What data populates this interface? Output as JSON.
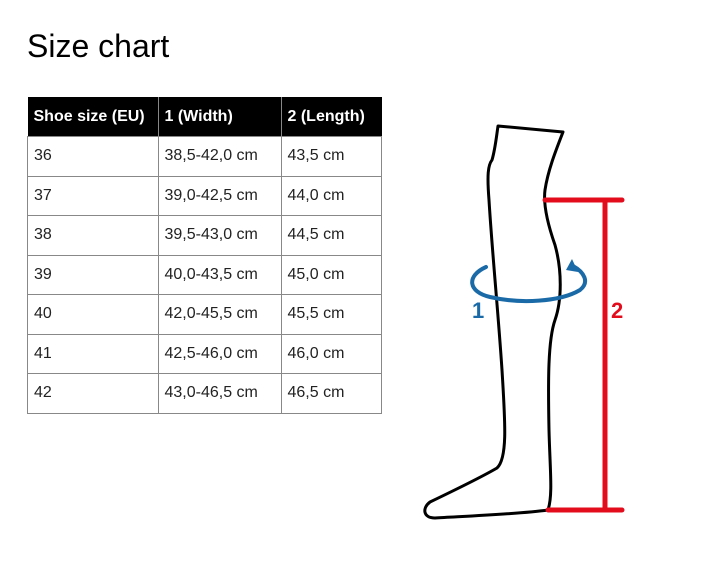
{
  "title": "Size chart",
  "table": {
    "headers": [
      "Shoe size (EU)",
      "1 (Width)",
      "2 (Length)"
    ],
    "rows": [
      [
        "36",
        "38,5-42,0 cm",
        "43,5 cm"
      ],
      [
        "37",
        "39,0-42,5 cm",
        "44,0 cm"
      ],
      [
        "38",
        "39,5-43,0 cm",
        "44,5 cm"
      ],
      [
        "39",
        "40,0-43,5 cm",
        "45,0 cm"
      ],
      [
        "40",
        "42,0-45,5 cm",
        "45,5 cm"
      ],
      [
        "41",
        "42,5-46,0 cm",
        "46,0 cm"
      ],
      [
        "42",
        "43,0-46,5 cm",
        "46,5 cm"
      ]
    ]
  },
  "diagram": {
    "width_label": "1",
    "length_label": "2",
    "colors": {
      "width": "#1a6aa8",
      "length": "#e30c1c",
      "outline": "#000000"
    }
  }
}
